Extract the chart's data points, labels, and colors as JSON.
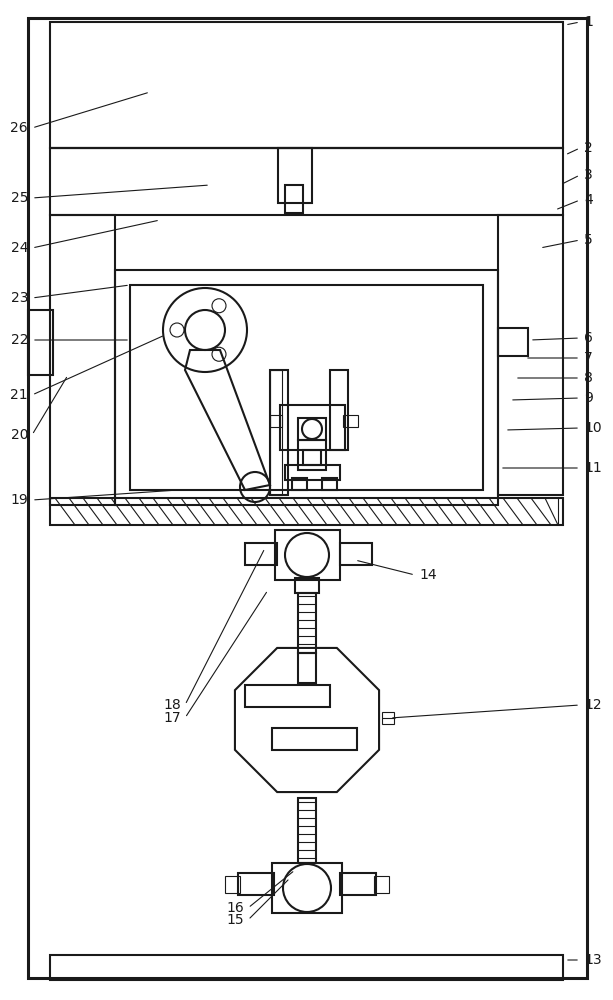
{
  "fig_width": 6.13,
  "fig_height": 10.0,
  "bg_color": "#ffffff",
  "line_color": "#1a1a1a",
  "lw": 1.5,
  "tlw": 0.8,
  "thkw": 2.2
}
